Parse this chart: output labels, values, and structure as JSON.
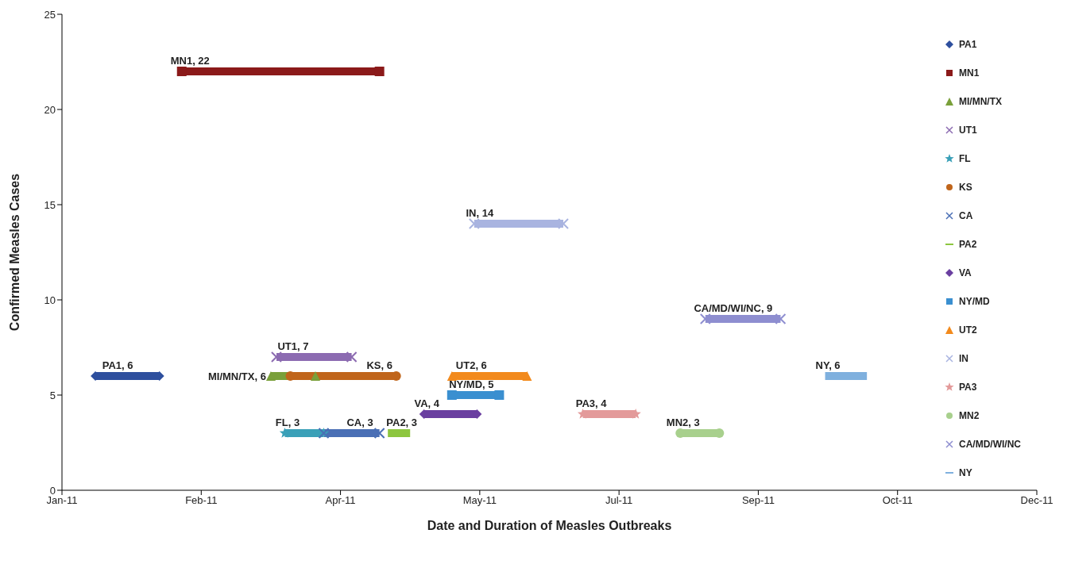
{
  "chart_data": {
    "type": "line",
    "xlabel": "Date and Duration of Measles Outbreaks",
    "ylabel": "Confirmed Measles Cases",
    "xlim": [
      "2011-01-01",
      "2011-12-17"
    ],
    "xticks": [
      {
        "value": "2011-01-01",
        "label": "Jan-11"
      },
      {
        "value": "2011-02-20",
        "label": "Feb-11"
      },
      {
        "value": "2011-04-11",
        "label": "Apr-11"
      },
      {
        "value": "2011-05-31",
        "label": "May-11"
      },
      {
        "value": "2011-07-20",
        "label": "Jul-11"
      },
      {
        "value": "2011-09-08",
        "label": "Sep-11"
      },
      {
        "value": "2011-10-28",
        "label": "Oct-11"
      },
      {
        "value": "2011-12-17",
        "label": "Dec-11"
      }
    ],
    "ylim": [
      0,
      25
    ],
    "yticks": [
      0,
      5,
      10,
      15,
      20,
      25
    ],
    "legend": "right",
    "series": [
      {
        "name": "PA1",
        "color": "#2e4f9e",
        "marker": "diamond",
        "x": [
          "2011-01-13",
          "2011-02-05"
        ],
        "values": [
          6,
          6
        ]
      },
      {
        "name": "MN1",
        "color": "#8b1a1a",
        "marker": "square",
        "x": [
          "2011-02-13",
          "2011-04-25"
        ],
        "values": [
          22,
          22
        ]
      },
      {
        "name": "MI/MN/TX",
        "color": "#7aa03a",
        "marker": "triangle",
        "x": [
          "2011-03-17",
          "2011-04-02"
        ],
        "values": [
          6,
          6
        ]
      },
      {
        "name": "UT1",
        "color": "#8c6bb1",
        "marker": "cross",
        "x": [
          "2011-03-19",
          "2011-04-15"
        ],
        "values": [
          7,
          7
        ]
      },
      {
        "name": "FL",
        "color": "#3aa0b8",
        "marker": "star",
        "x": [
          "2011-03-22",
          "2011-04-05"
        ],
        "values": [
          3,
          3
        ]
      },
      {
        "name": "KS",
        "color": "#c0651b",
        "marker": "circle",
        "x": [
          "2011-03-24",
          "2011-05-01"
        ],
        "values": [
          6,
          6
        ]
      },
      {
        "name": "CA",
        "color": "#4a6fb5",
        "marker": "cross",
        "x": [
          "2011-04-05",
          "2011-04-25"
        ],
        "values": [
          3,
          3
        ]
      },
      {
        "name": "PA2",
        "color": "#8dc63f",
        "marker": "none",
        "x": [
          "2011-04-28",
          "2011-05-06"
        ],
        "values": [
          3,
          3
        ]
      },
      {
        "name": "VA",
        "color": "#6a3fa0",
        "marker": "diamond",
        "x": [
          "2011-05-11",
          "2011-05-30"
        ],
        "values": [
          4,
          4
        ]
      },
      {
        "name": "NY/MD",
        "color": "#3a8fd0",
        "marker": "square",
        "x": [
          "2011-05-21",
          "2011-06-07"
        ],
        "values": [
          5,
          5
        ]
      },
      {
        "name": "UT2",
        "color": "#f28a1d",
        "marker": "triangle",
        "x": [
          "2011-05-21",
          "2011-06-17"
        ],
        "values": [
          6,
          6
        ]
      },
      {
        "name": "IN",
        "color": "#a9b4e0",
        "marker": "cross",
        "x": [
          "2011-05-29",
          "2011-06-30"
        ],
        "values": [
          14,
          14
        ]
      },
      {
        "name": "PA3",
        "color": "#e39a9a",
        "marker": "star",
        "x": [
          "2011-07-07",
          "2011-07-26"
        ],
        "values": [
          4,
          4
        ]
      },
      {
        "name": "MN2",
        "color": "#a8d08d",
        "marker": "circle",
        "x": [
          "2011-08-11",
          "2011-08-25"
        ],
        "values": [
          3,
          3
        ]
      },
      {
        "name": "CA/MD/WI/NC",
        "color": "#8e8ed0",
        "marker": "cross",
        "x": [
          "2011-08-20",
          "2011-09-16"
        ],
        "values": [
          9,
          9
        ]
      },
      {
        "name": "NY",
        "color": "#7fb0de",
        "marker": "none",
        "x": [
          "2011-10-02",
          "2011-10-17"
        ],
        "values": [
          6,
          6
        ]
      }
    ],
    "annotations": [
      {
        "text": "PA1, 6",
        "x": "2011-01-21",
        "y": 6
      },
      {
        "text": "MN1, 22",
        "x": "2011-02-16",
        "y": 22
      },
      {
        "text": "MI/MN/TX, 6",
        "x": "2011-03-17",
        "y": 6
      },
      {
        "text": "UT1, 7",
        "x": "2011-03-25",
        "y": 7
      },
      {
        "text": "KS, 6",
        "x": "2011-04-25",
        "y": 6
      },
      {
        "text": "FL, 3",
        "x": "2011-03-23",
        "y": 3
      },
      {
        "text": "CA, 3",
        "x": "2011-04-18",
        "y": 3
      },
      {
        "text": "PA2, 3",
        "x": "2011-05-03",
        "y": 3
      },
      {
        "text": "VA, 4",
        "x": "2011-05-12",
        "y": 4
      },
      {
        "text": "NY/MD, 5",
        "x": "2011-05-28",
        "y": 5
      },
      {
        "text": "UT2, 6",
        "x": "2011-05-28",
        "y": 6
      },
      {
        "text": "IN, 14",
        "x": "2011-05-31",
        "y": 14
      },
      {
        "text": "PA3, 4",
        "x": "2011-07-10",
        "y": 4
      },
      {
        "text": "MN2, 3",
        "x": "2011-08-12",
        "y": 3
      },
      {
        "text": "CA/MD/WI/NC, 9",
        "x": "2011-08-30",
        "y": 9
      },
      {
        "text": "NY, 6",
        "x": "2011-10-03",
        "y": 6
      }
    ]
  }
}
